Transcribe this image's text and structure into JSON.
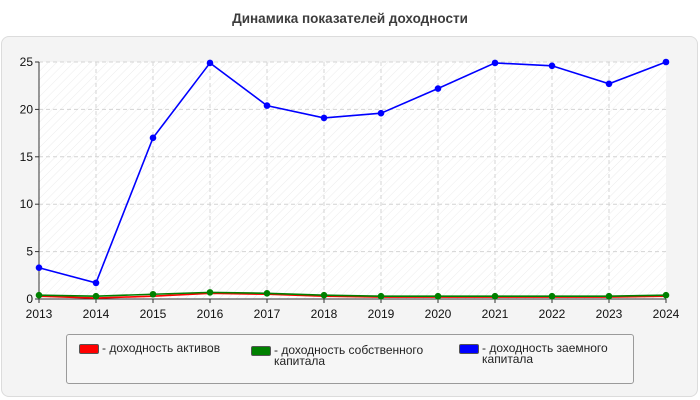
{
  "chart_data": {
    "type": "line",
    "title": "Динамика показателей доходности",
    "x": [
      "2013",
      "2014",
      "2015",
      "2016",
      "2017",
      "2018",
      "2019",
      "2020",
      "2021",
      "2022",
      "2023",
      "2024"
    ],
    "ylim": [
      0,
      25
    ],
    "yticks": [
      0,
      5,
      10,
      15,
      20,
      25
    ],
    "grid": true,
    "legend_position": "bottom",
    "series": [
      {
        "name": "- доходность активов",
        "color": "#ff0000",
        "values": [
          0.3,
          0.1,
          0.3,
          0.6,
          0.5,
          0.3,
          0.2,
          0.2,
          0.2,
          0.2,
          0.2,
          0.3
        ]
      },
      {
        "name": "- доходность собственного капитала",
        "color": "#008000",
        "values": [
          0.4,
          0.3,
          0.5,
          0.7,
          0.6,
          0.4,
          0.3,
          0.3,
          0.3,
          0.3,
          0.3,
          0.4
        ]
      },
      {
        "name": "- доходность заемного капитала",
        "color": "#0000ff",
        "values": [
          3.3,
          1.7,
          17.0,
          24.9,
          20.4,
          19.1,
          19.6,
          22.2,
          24.9,
          24.6,
          22.7,
          25.0
        ]
      }
    ]
  }
}
